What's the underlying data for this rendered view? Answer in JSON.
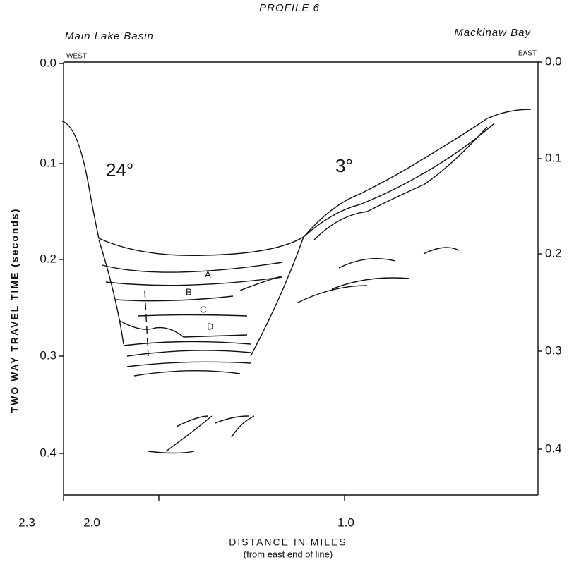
{
  "title": "PROFILE 6",
  "left_label": "Main Lake Basin",
  "right_label": "Mackinaw Bay",
  "west": "WEST",
  "east": "EAST",
  "y_axis_label": "TWO WAY TRAVEL TIME (seconds)",
  "left_ticks": [
    "0.0",
    "0.1",
    "0.2",
    "0.3",
    "0.4"
  ],
  "right_ticks": [
    "0.0",
    "0.1",
    "0.2",
    "0.3",
    "0.4"
  ],
  "x_ticks": [
    "2.3",
    "2.0",
    "1.0"
  ],
  "x_axis_label": "DISTANCE IN MILES",
  "x_axis_sublabel": "(from east end of line)",
  "dips": [
    "24°",
    "3°"
  ],
  "layers": [
    "A",
    "B",
    "C",
    "D"
  ]
}
